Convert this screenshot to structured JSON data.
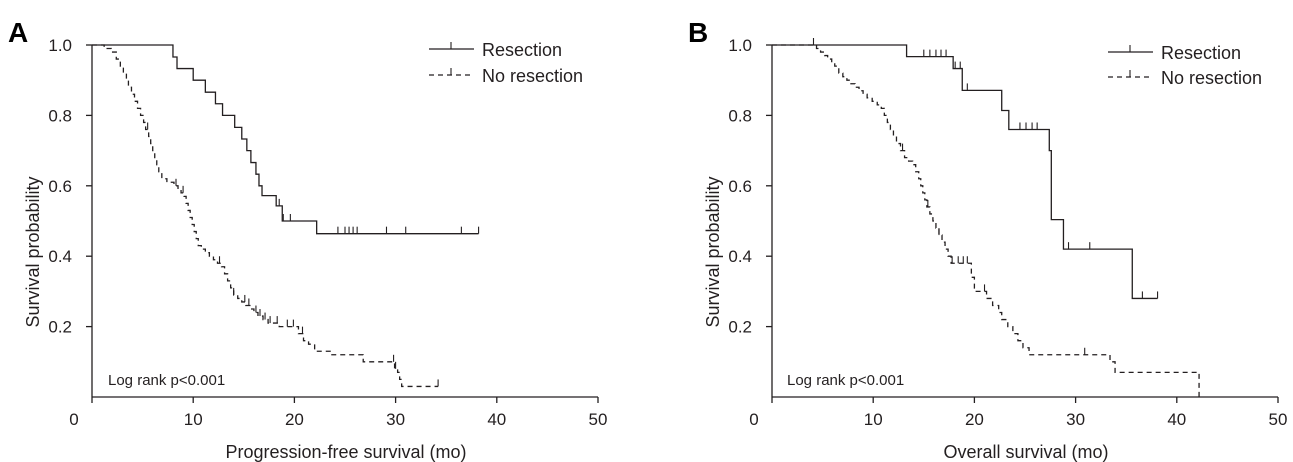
{
  "chart_data": [
    {
      "panel": "A",
      "type": "line",
      "xlabel": "Progression-free survival (mo)",
      "ylabel": "Survival probability",
      "xlim": [
        0,
        50
      ],
      "ylim": [
        0,
        1.0
      ],
      "xticks": [
        0,
        10,
        20,
        30,
        40,
        50
      ],
      "yticks": [
        0.2,
        0.4,
        0.6,
        0.8,
        1.0
      ],
      "xtick_labels": [
        "0",
        "10",
        "20",
        "30",
        "40",
        "50"
      ],
      "ytick_labels": [
        "0.2",
        "0.4",
        "0.6",
        "0.8",
        "1.0"
      ],
      "annotation": "Log rank p<0.001",
      "legend_position": "top-right",
      "series": [
        {
          "name": "Resection",
          "style": "solid",
          "steps": [
            [
              0,
              1.0
            ],
            [
              8.0,
              0.966
            ],
            [
              8.4,
              0.933
            ],
            [
              10.0,
              0.9
            ],
            [
              11.2,
              0.866
            ],
            [
              12.2,
              0.833
            ],
            [
              12.9,
              0.8
            ],
            [
              14.1,
              0.766
            ],
            [
              14.8,
              0.733
            ],
            [
              15.3,
              0.7
            ],
            [
              15.7,
              0.666
            ],
            [
              16.2,
              0.633
            ],
            [
              16.5,
              0.6
            ],
            [
              16.8,
              0.572
            ],
            [
              18.2,
              0.543
            ],
            [
              18.8,
              0.5
            ],
            [
              22.2,
              0.464
            ]
          ],
          "end_x": 38.2,
          "censor": [
            18.5,
            18.9,
            19.6,
            24.3,
            25.0,
            25.4,
            25.8,
            26.2,
            29.1,
            31.0,
            36.5,
            38.2
          ]
        },
        {
          "name": "No resection",
          "style": "dashed",
          "steps": [
            [
              0,
              1.0
            ],
            [
              1.2,
              0.99
            ],
            [
              1.9,
              0.98
            ],
            [
              2.4,
              0.96
            ],
            [
              2.8,
              0.94
            ],
            [
              3.1,
              0.92
            ],
            [
              3.4,
              0.9
            ],
            [
              3.6,
              0.88
            ],
            [
              3.9,
              0.86
            ],
            [
              4.2,
              0.84
            ],
            [
              4.5,
              0.82
            ],
            [
              4.8,
              0.8
            ],
            [
              5.1,
              0.78
            ],
            [
              5.3,
              0.76
            ],
            [
              5.6,
              0.74
            ],
            [
              5.8,
              0.72
            ],
            [
              6.0,
              0.7
            ],
            [
              6.2,
              0.68
            ],
            [
              6.4,
              0.66
            ],
            [
              6.6,
              0.64
            ],
            [
              6.9,
              0.62
            ],
            [
              7.4,
              0.61
            ],
            [
              8.1,
              0.6
            ],
            [
              8.5,
              0.59
            ],
            [
              8.8,
              0.58
            ],
            [
              9.1,
              0.57
            ],
            [
              9.3,
              0.55
            ],
            [
              9.5,
              0.53
            ],
            [
              9.7,
              0.51
            ],
            [
              9.9,
              0.49
            ],
            [
              10.1,
              0.47
            ],
            [
              10.3,
              0.45
            ],
            [
              10.5,
              0.43
            ],
            [
              10.8,
              0.42
            ],
            [
              11.2,
              0.41
            ],
            [
              11.6,
              0.4
            ],
            [
              12.0,
              0.39
            ],
            [
              12.4,
              0.38
            ],
            [
              12.8,
              0.37
            ],
            [
              13.1,
              0.35
            ],
            [
              13.4,
              0.33
            ],
            [
              13.7,
              0.31
            ],
            [
              14.0,
              0.29
            ],
            [
              14.4,
              0.28
            ],
            [
              14.8,
              0.27
            ],
            [
              15.2,
              0.26
            ],
            [
              15.6,
              0.25
            ],
            [
              16.0,
              0.24
            ],
            [
              16.4,
              0.23
            ],
            [
              16.9,
              0.22
            ],
            [
              17.4,
              0.21
            ],
            [
              18.5,
              0.2
            ],
            [
              20.4,
              0.18
            ],
            [
              20.9,
              0.16
            ],
            [
              21.4,
              0.15
            ],
            [
              22.0,
              0.13
            ],
            [
              23.6,
              0.12
            ],
            [
              26.8,
              0.1
            ],
            [
              29.9,
              0.08
            ],
            [
              30.2,
              0.07
            ],
            [
              30.4,
              0.05
            ],
            [
              30.6,
              0.03
            ]
          ],
          "end_x": 34.2,
          "censor": [
            5.5,
            8.3,
            9.0,
            12.6,
            14.0,
            15.1,
            15.5,
            16.2,
            16.6,
            17.1,
            17.6,
            18.3,
            19.3,
            19.9,
            20.8,
            29.8,
            30.0,
            34.2
          ]
        }
      ]
    },
    {
      "panel": "B",
      "type": "line",
      "xlabel": "Overall survival (mo)",
      "ylabel": "Survival probability",
      "xlim": [
        0,
        50
      ],
      "ylim": [
        0,
        1.0
      ],
      "xticks": [
        0,
        10,
        20,
        30,
        40,
        50
      ],
      "yticks": [
        0.2,
        0.4,
        0.6,
        0.8,
        1.0
      ],
      "xtick_labels": [
        "0",
        "10",
        "20",
        "30",
        "40",
        "50"
      ],
      "ytick_labels": [
        "0.2",
        "0.4",
        "0.6",
        "0.8",
        "1.0"
      ],
      "annotation": "Log rank p<0.001",
      "legend_position": "top-right",
      "series": [
        {
          "name": "Resection",
          "style": "solid",
          "steps": [
            [
              0,
              1.0
            ],
            [
              13.3,
              0.967
            ],
            [
              17.9,
              0.933
            ],
            [
              18.8,
              0.871
            ],
            [
              22.7,
              0.814
            ],
            [
              23.4,
              0.76
            ],
            [
              27.4,
              0.7
            ],
            [
              27.6,
              0.504
            ],
            [
              28.8,
              0.42
            ],
            [
              35.6,
              0.28
            ]
          ],
          "end_x": 38.1,
          "censor": [
            15.0,
            15.6,
            16.2,
            16.7,
            17.2,
            18.1,
            18.6,
            19.3,
            24.5,
            25.1,
            25.7,
            26.2,
            29.3,
            31.4,
            36.6,
            38.1
          ]
        },
        {
          "name": "No resection",
          "style": "dashed",
          "steps": [
            [
              0,
              1.0
            ],
            [
              4.4,
              0.99
            ],
            [
              4.8,
              0.98
            ],
            [
              5.2,
              0.97
            ],
            [
              5.5,
              0.96
            ],
            [
              5.9,
              0.95
            ],
            [
              6.2,
              0.94
            ],
            [
              6.6,
              0.92
            ],
            [
              7.0,
              0.91
            ],
            [
              7.4,
              0.9
            ],
            [
              7.8,
              0.89
            ],
            [
              8.2,
              0.88
            ],
            [
              8.6,
              0.87
            ],
            [
              9.0,
              0.86
            ],
            [
              9.4,
              0.85
            ],
            [
              9.9,
              0.84
            ],
            [
              10.4,
              0.83
            ],
            [
              10.8,
              0.82
            ],
            [
              11.1,
              0.8
            ],
            [
              11.4,
              0.78
            ],
            [
              11.7,
              0.76
            ],
            [
              12.0,
              0.74
            ],
            [
              12.3,
              0.72
            ],
            [
              12.7,
              0.7
            ],
            [
              13.1,
              0.68
            ],
            [
              13.5,
              0.67
            ],
            [
              13.9,
              0.66
            ],
            [
              14.2,
              0.64
            ],
            [
              14.5,
              0.62
            ],
            [
              14.7,
              0.6
            ],
            [
              14.9,
              0.58
            ],
            [
              15.1,
              0.56
            ],
            [
              15.3,
              0.54
            ],
            [
              15.6,
              0.52
            ],
            [
              15.9,
              0.5
            ],
            [
              16.2,
              0.48
            ],
            [
              16.5,
              0.46
            ],
            [
              16.8,
              0.44
            ],
            [
              17.1,
              0.42
            ],
            [
              17.4,
              0.4
            ],
            [
              17.7,
              0.38
            ],
            [
              19.7,
              0.34
            ],
            [
              20.0,
              0.3
            ],
            [
              21.2,
              0.28
            ],
            [
              21.8,
              0.26
            ],
            [
              22.4,
              0.24
            ],
            [
              22.7,
              0.22
            ],
            [
              23.3,
              0.2
            ],
            [
              23.8,
              0.18
            ],
            [
              24.3,
              0.16
            ],
            [
              24.8,
              0.14
            ],
            [
              25.4,
              0.12
            ],
            [
              33.4,
              0.1
            ],
            [
              33.9,
              0.07
            ],
            [
              42.2,
              0.0
            ]
          ],
          "end_x": 42.2,
          "censor": [
            4.1,
            12.9,
            15.4,
            16.5,
            17.8,
            18.4,
            18.9,
            19.3,
            21.0,
            30.9
          ]
        }
      ]
    }
  ]
}
